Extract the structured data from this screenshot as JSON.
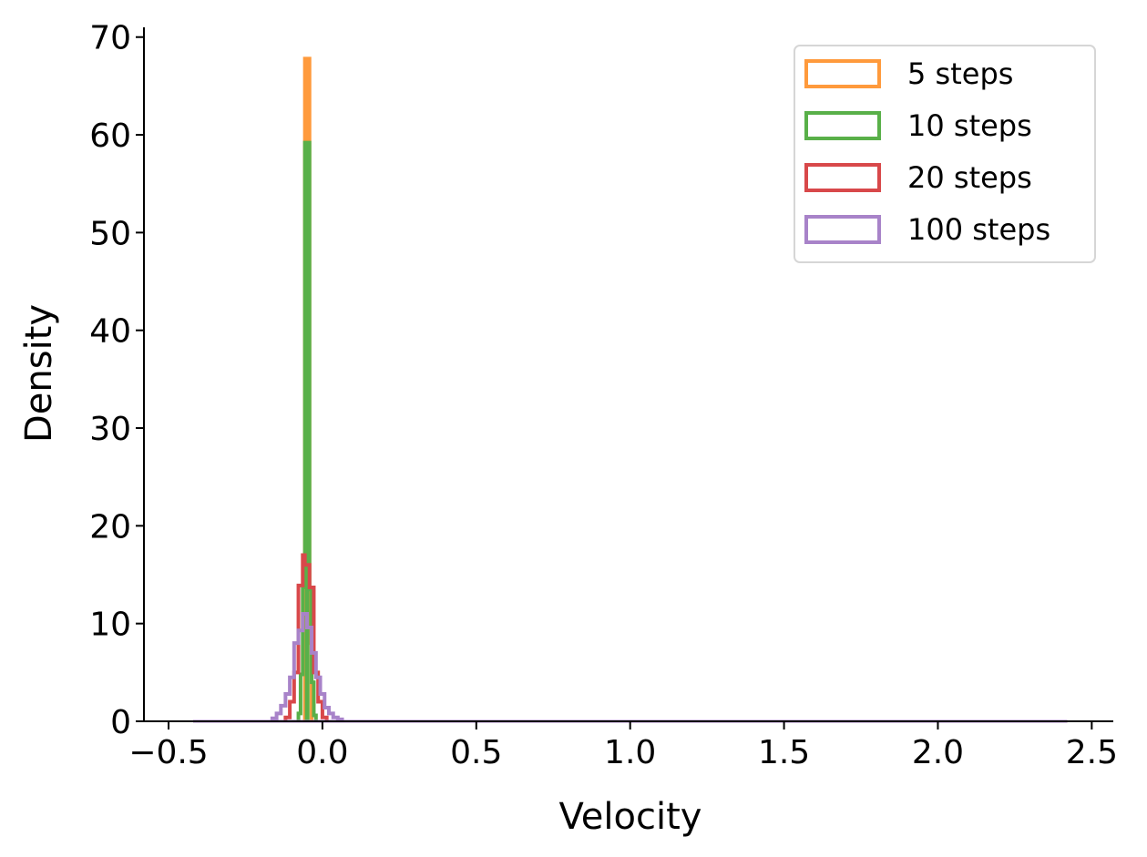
{
  "chart_data": {
    "type": "histogram-step",
    "title": "",
    "xlabel": "Velocity",
    "ylabel": "Density",
    "xlim": [
      -0.58,
      2.57
    ],
    "ylim": [
      0,
      71
    ],
    "xticks": [
      -0.5,
      0.0,
      0.5,
      1.0,
      1.5,
      2.0,
      2.5
    ],
    "xtick_labels": [
      "−0.5",
      "0.0",
      "0.5",
      "1.0",
      "1.5",
      "2.0",
      "2.5"
    ],
    "yticks": [
      0,
      10,
      20,
      30,
      40,
      50,
      60,
      70
    ],
    "ytick_labels": [
      "0",
      "10",
      "20",
      "30",
      "40",
      "50",
      "60",
      "70"
    ],
    "grid": false,
    "legend_position": "top-right",
    "range": [
      -0.42,
      2.42
    ],
    "series": [
      {
        "name": "5 steps",
        "color": "#ff9a3c",
        "filled_peak": true,
        "bins": [
          {
            "x0": -0.057,
            "x1": -0.042,
            "y": 67.8
          },
          {
            "x0": -0.042,
            "x1": -0.035,
            "y": 8.0
          }
        ]
      },
      {
        "name": "10 steps",
        "color": "#59b049",
        "filled_peak": true,
        "bins": [
          {
            "x0": -0.078,
            "x1": -0.071,
            "y": 0.8
          },
          {
            "x0": -0.071,
            "x1": -0.064,
            "y": 4.8
          },
          {
            "x0": -0.064,
            "x1": -0.057,
            "y": 13.7
          },
          {
            "x0": -0.057,
            "x1": -0.042,
            "y": 59.2
          },
          {
            "x0": -0.042,
            "x1": -0.035,
            "y": 13.5
          },
          {
            "x0": -0.035,
            "x1": -0.028,
            "y": 4.0
          },
          {
            "x0": -0.028,
            "x1": -0.021,
            "y": 0.6
          }
        ]
      },
      {
        "name": "20 steps",
        "color": "#d8484a",
        "filled_peak": false,
        "bins": [
          {
            "x0": -0.12,
            "x1": -0.106,
            "y": 0.4
          },
          {
            "x0": -0.106,
            "x1": -0.092,
            "y": 2.0
          },
          {
            "x0": -0.092,
            "x1": -0.078,
            "y": 5.0
          },
          {
            "x0": -0.078,
            "x1": -0.064,
            "y": 13.9
          },
          {
            "x0": -0.064,
            "x1": -0.057,
            "y": 17.0
          },
          {
            "x0": -0.057,
            "x1": -0.042,
            "y": 16.0
          },
          {
            "x0": -0.042,
            "x1": -0.028,
            "y": 13.7
          },
          {
            "x0": -0.028,
            "x1": -0.014,
            "y": 5.0
          },
          {
            "x0": -0.014,
            "x1": 0.0,
            "y": 2.0
          },
          {
            "x0": 0.0,
            "x1": 0.014,
            "y": 0.4
          }
        ]
      },
      {
        "name": "100 steps",
        "color": "#a883c9",
        "filled_peak": false,
        "bins": [
          {
            "x0": -0.163,
            "x1": -0.149,
            "y": 0.3
          },
          {
            "x0": -0.149,
            "x1": -0.135,
            "y": 0.8
          },
          {
            "x0": -0.135,
            "x1": -0.12,
            "y": 1.6
          },
          {
            "x0": -0.12,
            "x1": -0.106,
            "y": 2.8
          },
          {
            "x0": -0.106,
            "x1": -0.092,
            "y": 4.5
          },
          {
            "x0": -0.092,
            "x1": -0.078,
            "y": 8.0
          },
          {
            "x0": -0.078,
            "x1": -0.064,
            "y": 9.3
          },
          {
            "x0": -0.064,
            "x1": -0.05,
            "y": 11.0
          },
          {
            "x0": -0.05,
            "x1": -0.035,
            "y": 9.6
          },
          {
            "x0": -0.035,
            "x1": -0.021,
            "y": 7.0
          },
          {
            "x0": -0.021,
            "x1": -0.007,
            "y": 4.5
          },
          {
            "x0": -0.007,
            "x1": 0.007,
            "y": 2.8
          },
          {
            "x0": 0.007,
            "x1": 0.021,
            "y": 1.4
          },
          {
            "x0": 0.021,
            "x1": 0.035,
            "y": 0.8
          },
          {
            "x0": 0.035,
            "x1": 0.05,
            "y": 0.4
          },
          {
            "x0": 0.05,
            "x1": 0.064,
            "y": 0.2
          }
        ]
      }
    ]
  }
}
